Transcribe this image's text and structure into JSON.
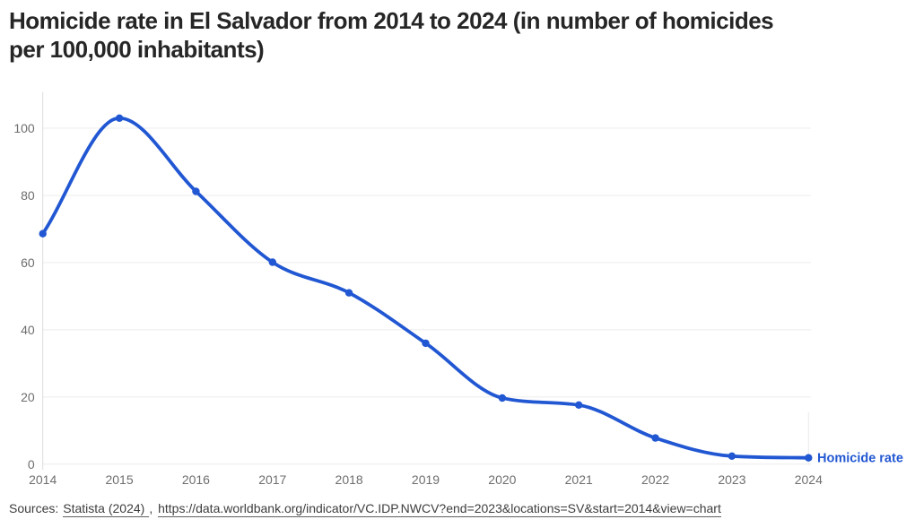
{
  "title": {
    "line1": "Homicide rate in El Salvador from 2014 to 2024 (in number of homicides",
    "line2": "per 100,000 inhabitants)"
  },
  "chart_data": {
    "type": "line",
    "title": "Homicide rate in El Salvador from 2014 to 2024 (in number of homicides per 100,000 inhabitants)",
    "x": [
      2014,
      2015,
      2016,
      2017,
      2018,
      2019,
      2020,
      2021,
      2022,
      2023,
      2024
    ],
    "series": [
      {
        "name": "Homicide rate",
        "values": [
          68.6,
          103,
          81.2,
          60.1,
          51,
          36,
          19.7,
          17.6,
          7.8,
          2.4,
          1.9
        ]
      }
    ],
    "xlabel": "",
    "ylabel": "",
    "ylim": [
      0,
      110
    ],
    "yticks": [
      0,
      20,
      40,
      60,
      80,
      100
    ],
    "grid": true,
    "legend_position": "end-of-line-right",
    "colors": {
      "line": "#2157d2",
      "grid": "#ececec",
      "axis": "#dcdcdc",
      "last_tick": "#e9e9e9",
      "tick_label": "#6e6e6e",
      "title": "#262626",
      "source_text": "#3d3d3d"
    }
  },
  "footer": {
    "prefix": "Sources:",
    "link_statista": "Statista (2024)",
    "separator": ",",
    "link_worldbank": "https://data.worldbank.org/indicator/VC.IDP.NWCV?end=2023&locations=SV&start=2014&view=chart"
  }
}
